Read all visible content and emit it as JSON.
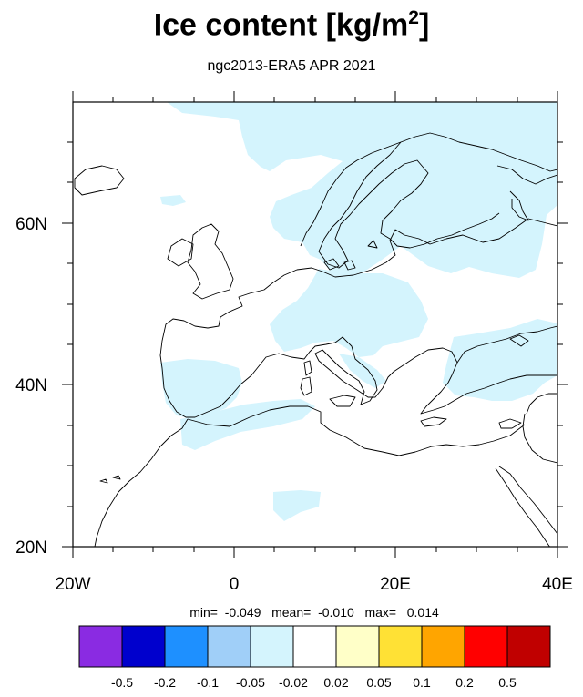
{
  "title_main": "Ice content  [kg/m",
  "title_sup": "2",
  "title_close": "]",
  "subtitle": "ngc2013-ERA5 APR 2021",
  "map": {
    "projection": "cylindrical equidistant",
    "lon_range": [
      -20,
      40
    ],
    "lat_range": [
      20,
      75
    ],
    "x_ticks": [
      "20W",
      "0",
      "20E",
      "40E"
    ],
    "y_ticks": [
      "20N",
      "40N",
      "60N"
    ],
    "anomaly_fill_color": "#d4f4fd",
    "coastline_color": "#000000"
  },
  "stats": {
    "min_label": "min=",
    "min": "-0.049",
    "mean_label": "mean=",
    "mean": "-0.010",
    "max_label": "max=",
    "max": "0.014"
  },
  "colorbar": {
    "colors": [
      "#8a2be2",
      "#0000cd",
      "#1e90ff",
      "#a0cff8",
      "#d4f4fd",
      "#ffffff",
      "#ffffc8",
      "#ffe135",
      "#ffa500",
      "#ff0000",
      "#c00000"
    ],
    "labels": [
      "-0.5",
      "-0.2",
      "-0.1",
      "-0.05",
      "-0.02",
      "0.02",
      "0.05",
      "0.1",
      "0.2",
      "0.5"
    ]
  }
}
